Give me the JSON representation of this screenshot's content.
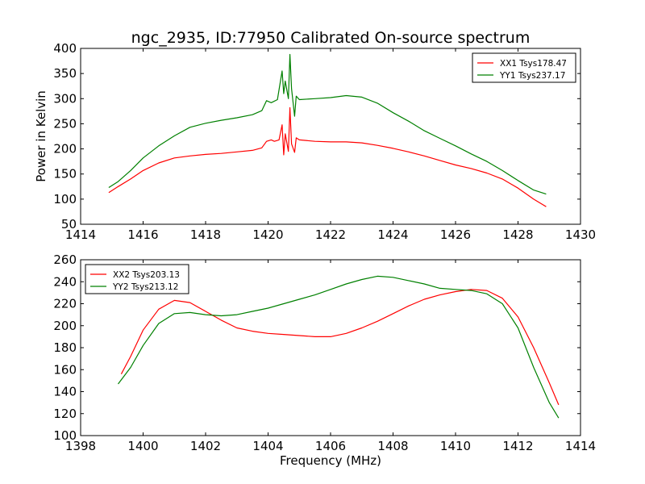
{
  "title": "ngc_2935, ID:77950 Calibrated On-source spectrum",
  "chart_data": [
    {
      "type": "line",
      "ylabel": "Power in Kelvin",
      "xlabel": "",
      "xlim": [
        1414,
        1430
      ],
      "ylim": [
        50,
        400
      ],
      "xticks": [
        1414,
        1416,
        1418,
        1420,
        1422,
        1424,
        1426,
        1428,
        1430
      ],
      "yticks": [
        50,
        100,
        150,
        200,
        250,
        300,
        350,
        400
      ],
      "legend_position": "top-right",
      "series": [
        {
          "name": "XX1 Tsys178.47",
          "color": "#ff0000",
          "points": [
            [
              1414.9,
              113
            ],
            [
              1415.2,
              125
            ],
            [
              1415.6,
              140
            ],
            [
              1416.0,
              157
            ],
            [
              1416.5,
              172
            ],
            [
              1417.0,
              182
            ],
            [
              1417.5,
              186
            ],
            [
              1418.0,
              189
            ],
            [
              1418.5,
              191
            ],
            [
              1419.0,
              194
            ],
            [
              1419.5,
              197
            ],
            [
              1419.8,
              202
            ],
            [
              1419.95,
              215
            ],
            [
              1420.1,
              218
            ],
            [
              1420.2,
              215
            ],
            [
              1420.35,
              218
            ],
            [
              1420.45,
              248
            ],
            [
              1420.5,
              188
            ],
            [
              1420.55,
              230
            ],
            [
              1420.65,
              195
            ],
            [
              1420.7,
              282
            ],
            [
              1420.75,
              210
            ],
            [
              1420.85,
              193
            ],
            [
              1420.9,
              222
            ],
            [
              1421.0,
              218
            ],
            [
              1421.5,
              215
            ],
            [
              1422.0,
              214
            ],
            [
              1422.5,
              214
            ],
            [
              1423.0,
              212
            ],
            [
              1423.5,
              207
            ],
            [
              1424.0,
              201
            ],
            [
              1424.5,
              194
            ],
            [
              1425.0,
              186
            ],
            [
              1425.5,
              177
            ],
            [
              1426.0,
              168
            ],
            [
              1426.5,
              161
            ],
            [
              1427.0,
              152
            ],
            [
              1427.5,
              140
            ],
            [
              1428.0,
              122
            ],
            [
              1428.5,
              100
            ],
            [
              1428.9,
              85
            ]
          ]
        },
        {
          "name": "YY1 Tsys237.17",
          "color": "#008000",
          "points": [
            [
              1414.9,
              123
            ],
            [
              1415.2,
              135
            ],
            [
              1415.6,
              157
            ],
            [
              1416.0,
              182
            ],
            [
              1416.5,
              206
            ],
            [
              1417.0,
              226
            ],
            [
              1417.5,
              243
            ],
            [
              1418.0,
              251
            ],
            [
              1418.5,
              257
            ],
            [
              1419.0,
              262
            ],
            [
              1419.5,
              268
            ],
            [
              1419.8,
              276
            ],
            [
              1419.95,
              296
            ],
            [
              1420.1,
              292
            ],
            [
              1420.3,
              298
            ],
            [
              1420.45,
              355
            ],
            [
              1420.5,
              310
            ],
            [
              1420.55,
              335
            ],
            [
              1420.65,
              300
            ],
            [
              1420.7,
              388
            ],
            [
              1420.75,
              320
            ],
            [
              1420.85,
              265
            ],
            [
              1420.9,
              305
            ],
            [
              1421.0,
              298
            ],
            [
              1421.5,
              300
            ],
            [
              1422.0,
              302
            ],
            [
              1422.5,
              306
            ],
            [
              1423.0,
              303
            ],
            [
              1423.5,
              291
            ],
            [
              1424.0,
              272
            ],
            [
              1424.5,
              255
            ],
            [
              1425.0,
              236
            ],
            [
              1425.5,
              221
            ],
            [
              1426.0,
              206
            ],
            [
              1426.5,
              190
            ],
            [
              1427.0,
              175
            ],
            [
              1427.5,
              157
            ],
            [
              1428.0,
              137
            ],
            [
              1428.5,
              118
            ],
            [
              1428.9,
              110
            ]
          ]
        }
      ]
    },
    {
      "type": "line",
      "ylabel": "",
      "xlabel": "Frequency (MHz)",
      "xlim": [
        1398,
        1414
      ],
      "ylim": [
        100,
        260
      ],
      "xticks": [
        1398,
        1400,
        1402,
        1404,
        1406,
        1408,
        1410,
        1412,
        1414
      ],
      "yticks": [
        100,
        120,
        140,
        160,
        180,
        200,
        220,
        240,
        260
      ],
      "legend_position": "top-left",
      "series": [
        {
          "name": "XX2 Tsys203.13",
          "color": "#ff0000",
          "points": [
            [
              1399.3,
              156
            ],
            [
              1399.6,
              172
            ],
            [
              1400.0,
              196
            ],
            [
              1400.5,
              215
            ],
            [
              1401.0,
              223
            ],
            [
              1401.5,
              221
            ],
            [
              1402.0,
              213
            ],
            [
              1402.5,
              205
            ],
            [
              1403.0,
              198
            ],
            [
              1403.5,
              195
            ],
            [
              1404.0,
              193
            ],
            [
              1404.5,
              192
            ],
            [
              1405.0,
              191
            ],
            [
              1405.5,
              190
            ],
            [
              1406.0,
              190
            ],
            [
              1406.5,
              193
            ],
            [
              1407.0,
              198
            ],
            [
              1407.5,
              204
            ],
            [
              1408.0,
              211
            ],
            [
              1408.5,
              218
            ],
            [
              1409.0,
              224
            ],
            [
              1409.5,
              228
            ],
            [
              1410.0,
              231
            ],
            [
              1410.5,
              233
            ],
            [
              1411.0,
              232
            ],
            [
              1411.5,
              225
            ],
            [
              1412.0,
              208
            ],
            [
              1412.5,
              180
            ],
            [
              1413.0,
              148
            ],
            [
              1413.3,
              128
            ]
          ]
        },
        {
          "name": "YY2 Tsys213.12",
          "color": "#008000",
          "points": [
            [
              1399.2,
              147
            ],
            [
              1399.6,
              162
            ],
            [
              1400.0,
              182
            ],
            [
              1400.5,
              202
            ],
            [
              1401.0,
              211
            ],
            [
              1401.5,
              212
            ],
            [
              1402.0,
              210
            ],
            [
              1402.5,
              209
            ],
            [
              1403.0,
              210
            ],
            [
              1403.5,
              213
            ],
            [
              1404.0,
              216
            ],
            [
              1404.5,
              220
            ],
            [
              1405.0,
              224
            ],
            [
              1405.5,
              228
            ],
            [
              1406.0,
              233
            ],
            [
              1406.5,
              238
            ],
            [
              1407.0,
              242
            ],
            [
              1407.5,
              245
            ],
            [
              1408.0,
              244
            ],
            [
              1408.5,
              241
            ],
            [
              1409.0,
              238
            ],
            [
              1409.5,
              234
            ],
            [
              1410.0,
              233
            ],
            [
              1410.5,
              232
            ],
            [
              1411.0,
              229
            ],
            [
              1411.5,
              220
            ],
            [
              1412.0,
              198
            ],
            [
              1412.5,
              162
            ],
            [
              1413.0,
              130
            ],
            [
              1413.3,
              116
            ]
          ]
        }
      ]
    }
  ]
}
